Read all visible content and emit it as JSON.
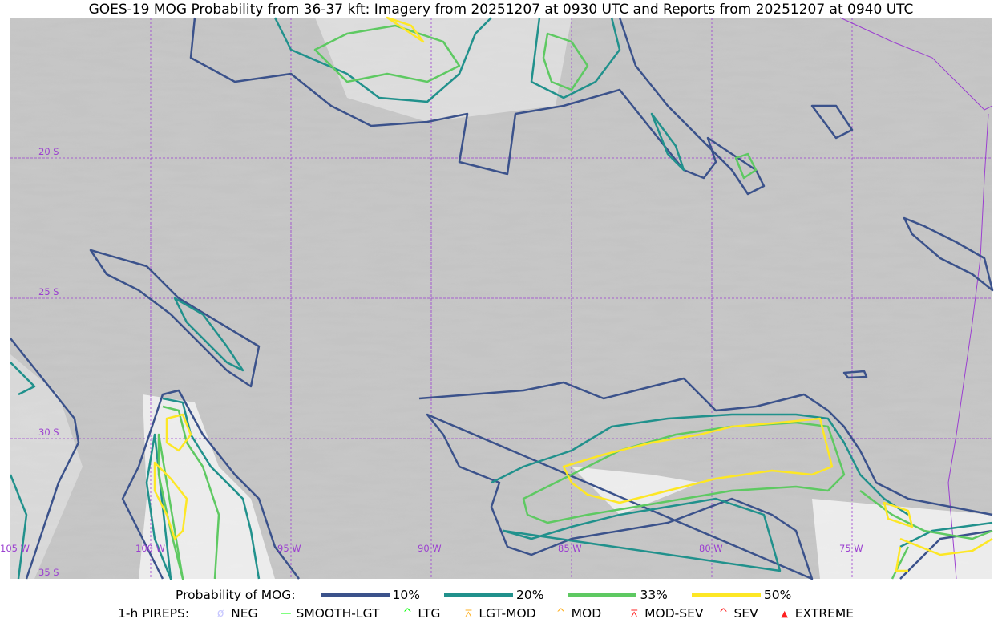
{
  "title": "GOES-19 MOG Probability from 36-37 kft: Imagery from 20251207 at 0930 UTC and Reports from 20251207 at 0940 UTC",
  "map": {
    "longitude_labels": [
      "105 W",
      "100 W",
      "95 W",
      "90 W",
      "85 W",
      "80 W",
      "75 W"
    ],
    "latitude_labels": [
      "20 S",
      "25 S",
      "30 S",
      "35 S"
    ],
    "gridline_color": "#9b3fd0",
    "border_color": "#9b3fd0"
  },
  "legend": {
    "probability_title": "Probability of MOG:",
    "probability_levels": [
      {
        "label": "10%",
        "color": "#3b528b"
      },
      {
        "label": "20%",
        "color": "#21918c"
      },
      {
        "label": "33%",
        "color": "#5ec962"
      },
      {
        "label": "50%",
        "color": "#fde725"
      }
    ],
    "pireps_title": "1-h PIREPS:",
    "pireps": [
      {
        "label": "NEG",
        "icon": "neg-circle-slash-icon",
        "color": "#c8c8ff"
      },
      {
        "label": "SMOOTH-LGT",
        "icon": "smooth-line-icon",
        "color": "#00ff00"
      },
      {
        "label": "LTG",
        "icon": "caret-icon",
        "color": "#00ff00"
      },
      {
        "label": "LGT-MOD",
        "icon": "caret-bar-icon",
        "color": "#ffb020"
      },
      {
        "label": "MOD",
        "icon": "caret-icon",
        "color": "#ffb020"
      },
      {
        "label": "MOD-SEV",
        "icon": "double-caret-bar-icon",
        "color": "#ff2020"
      },
      {
        "label": "SEV",
        "icon": "double-caret-icon",
        "color": "#ff2020"
      },
      {
        "label": "EXTREME",
        "icon": "filled-triangle-icon",
        "color": "#ff2020"
      }
    ]
  }
}
